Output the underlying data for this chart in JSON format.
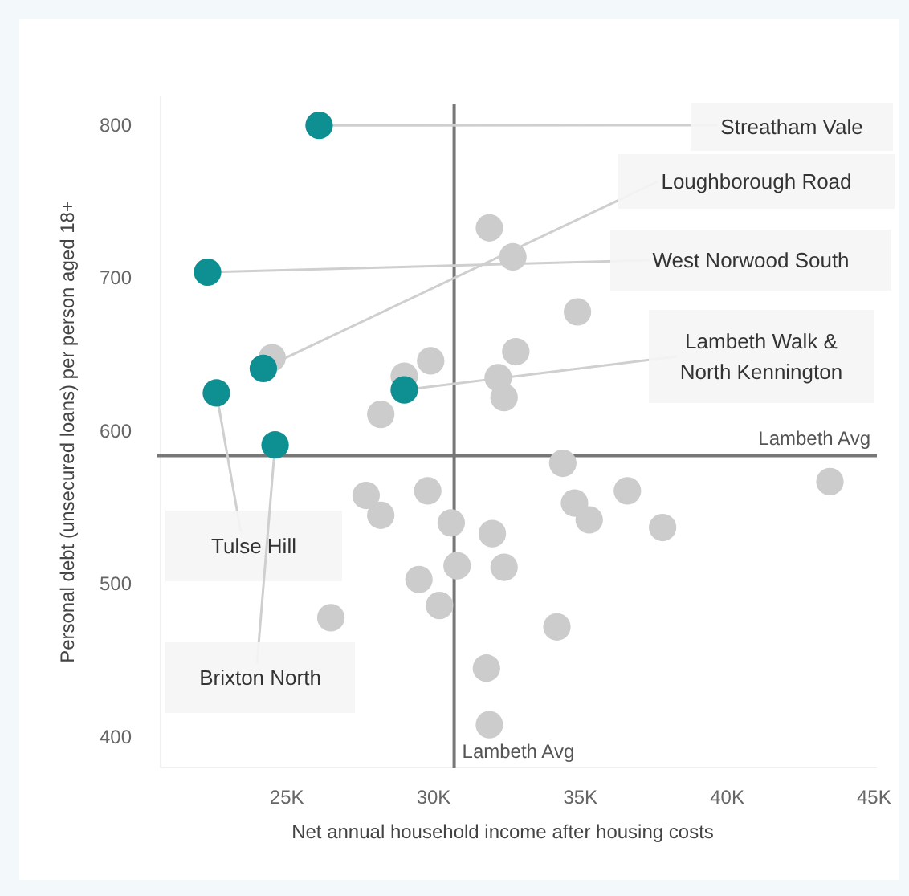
{
  "chart_data": {
    "type": "scatter",
    "xlabel": "Net annual household income after housing costs",
    "ylabel": "Personal debt (unsecured loans) per person aged 18+",
    "xlim": [
      20.7,
      45.1
    ],
    "ylim": [
      380,
      819
    ],
    "xticks": [
      {
        "value": 25,
        "label": "25K"
      },
      {
        "value": 30,
        "label": "30K"
      },
      {
        "value": 35,
        "label": "35K"
      },
      {
        "value": 40,
        "label": "40K"
      },
      {
        "value": 45,
        "label": "45K"
      }
    ],
    "yticks": [
      400,
      500,
      600,
      700,
      800
    ],
    "grid": false,
    "marker": "circle",
    "series": [
      {
        "color": "#cccccc",
        "x": [
          24.5,
          31.9,
          32.7,
          34.9,
          29.9,
          29.0,
          32.8,
          32.2,
          32.4,
          28.2,
          34.4,
          27.7,
          28.2,
          29.8,
          30.6,
          32.0,
          34.8,
          35.3,
          36.6,
          37.8,
          43.5,
          29.5,
          30.2,
          30.8,
          32.4,
          26.5,
          34.2,
          31.8,
          31.9
        ],
        "values": [
          648,
          733,
          714,
          678,
          646,
          636,
          652,
          635,
          622,
          611,
          579,
          558,
          545,
          561,
          540,
          533,
          553,
          542,
          561,
          537,
          567,
          503,
          486,
          512,
          511,
          478,
          472,
          445,
          408
        ]
      },
      {
        "color": "#0e8f92",
        "x": [
          26.1,
          24.2,
          22.3,
          29.0,
          22.6,
          24.6
        ],
        "values": [
          800,
          641,
          704,
          627,
          625,
          591
        ]
      }
    ],
    "ref_lines": [
      {
        "axis": "x",
        "value": 30.7,
        "label": "Lambeth Avg",
        "color": "#777777"
      },
      {
        "axis": "y",
        "value": 584,
        "label": "Lambeth Avg",
        "color": "#777777"
      }
    ],
    "annotations": [
      {
        "text": "Streatham Vale",
        "x": 26.1,
        "y": 800
      },
      {
        "text": "Loughborough Road",
        "x": 24.2,
        "y": 641
      },
      {
        "text": "West Norwood South",
        "x": 22.3,
        "y": 704
      },
      {
        "text": "Lambeth Walk & North Kennington",
        "x": 29.0,
        "y": 627
      },
      {
        "text": "Tulse Hill",
        "x": 22.6,
        "y": 625
      },
      {
        "text": "Brixton North",
        "x": 24.6,
        "y": 591
      }
    ]
  }
}
